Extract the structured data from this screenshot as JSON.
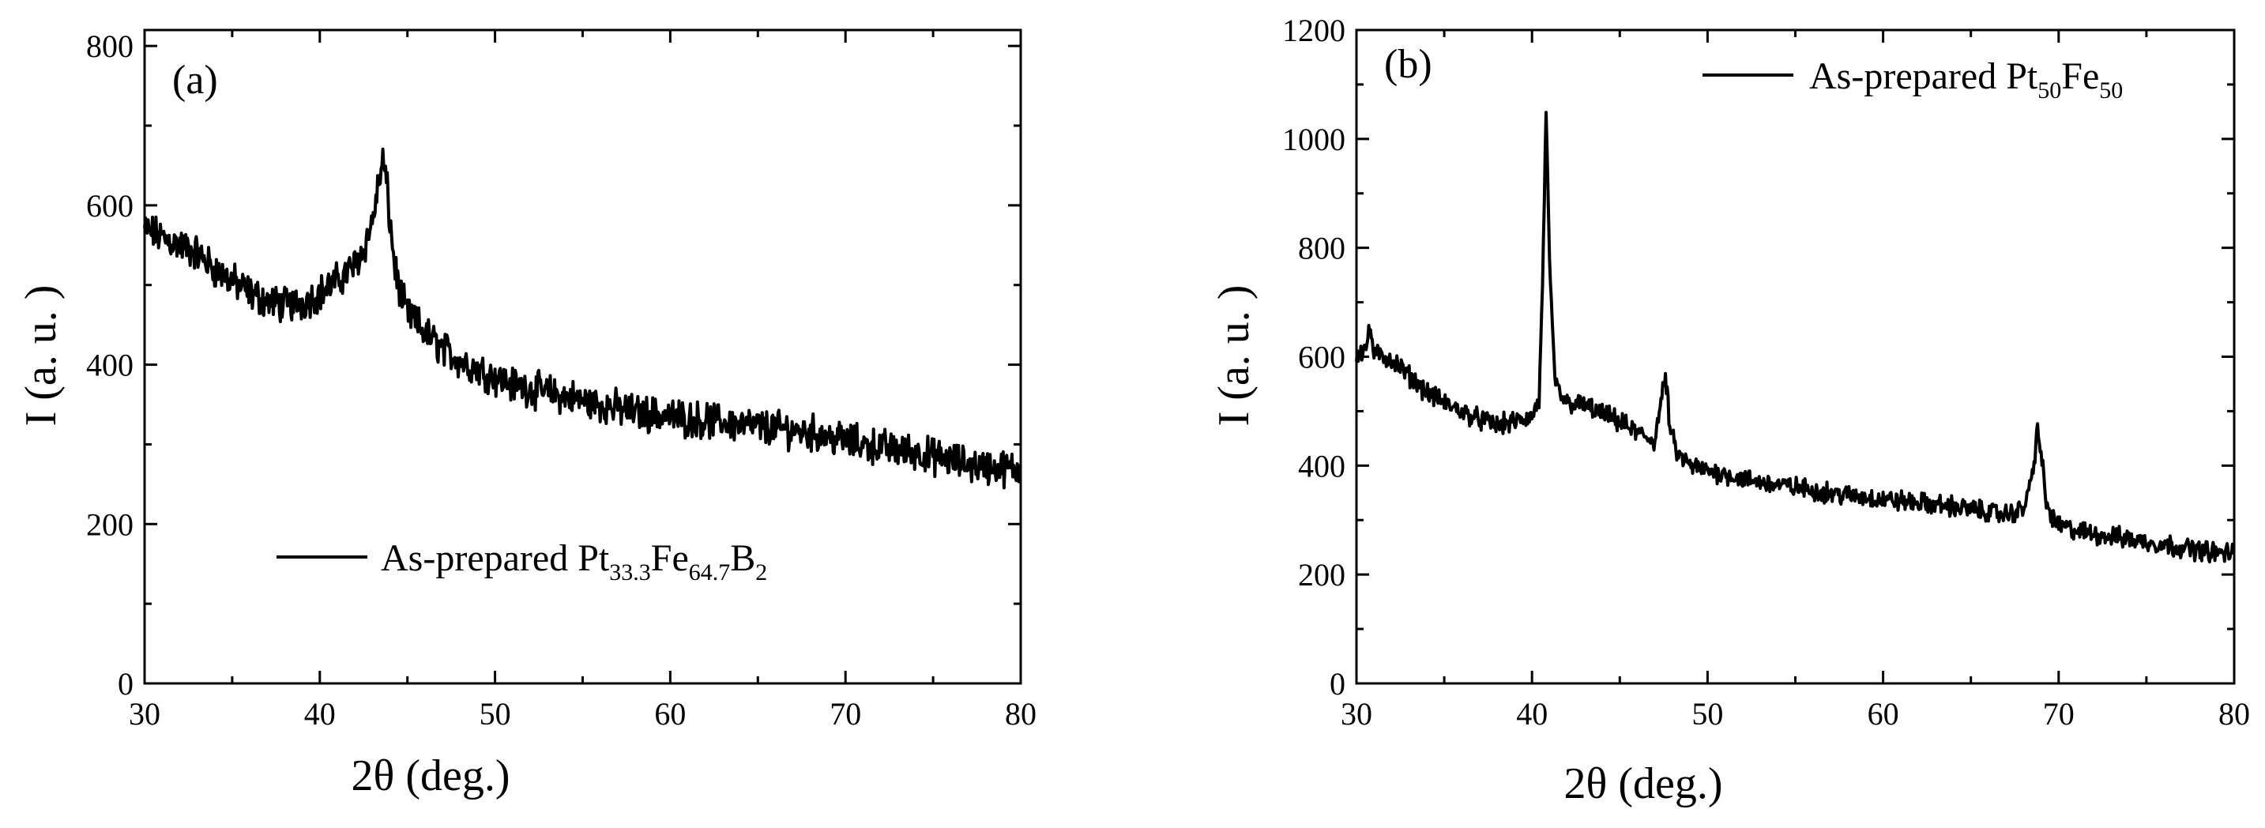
{
  "chart_data": [
    {
      "type": "line",
      "panel_label": "(a)",
      "xlabel": "2θ (deg.)",
      "ylabel": "I (a. u. )",
      "xlim": [
        30,
        80
      ],
      "ylim": [
        0,
        820
      ],
      "xticks": [
        30,
        40,
        50,
        60,
        70,
        80
      ],
      "yticks": [
        0,
        200,
        400,
        600,
        800
      ],
      "grid": false,
      "legend_position": "middle-center",
      "legend": {
        "base": "As-prepared Pt",
        "s1": "33.3",
        "mid1": "Fe",
        "s2": "64.7",
        "mid2": "B",
        "s3": "2"
      },
      "series": [
        {
          "x": [
            30,
            31,
            32,
            33,
            34,
            35,
            36,
            37,
            38,
            39,
            40,
            41,
            42,
            42.5,
            43,
            43.3,
            43.6,
            43.8,
            44,
            44.3,
            44.7,
            45,
            46,
            47,
            48,
            49,
            50,
            51,
            52,
            53,
            54,
            55,
            56,
            57,
            58,
            59,
            60,
            61,
            62,
            63,
            64,
            65,
            66,
            67,
            68,
            69,
            70,
            71,
            72,
            73,
            74,
            75,
            76,
            77,
            78,
            79,
            80
          ],
          "y": [
            570,
            560,
            550,
            540,
            520,
            505,
            490,
            480,
            475,
            478,
            490,
            505,
            525,
            545,
            580,
            620,
            655,
            630,
            580,
            520,
            480,
            465,
            440,
            420,
            405,
            395,
            385,
            375,
            370,
            365,
            360,
            355,
            350,
            345,
            340,
            338,
            335,
            332,
            330,
            328,
            325,
            322,
            320,
            318,
            315,
            310,
            305,
            300,
            297,
            293,
            290,
            285,
            280,
            275,
            272,
            270,
            268
          ]
        }
      ]
    },
    {
      "type": "line",
      "panel_label": "(b)",
      "xlabel": "2θ (deg.)",
      "ylabel": "I (a. u. )",
      "xlim": [
        30,
        80
      ],
      "ylim": [
        0,
        1200
      ],
      "xticks": [
        30,
        40,
        50,
        60,
        70,
        80
      ],
      "yticks": [
        0,
        200,
        400,
        600,
        800,
        1000,
        1200
      ],
      "grid": false,
      "legend_position": "top-right",
      "legend": {
        "base": "As-prepared Pt",
        "s1": "50",
        "mid1": "Fe",
        "s2": "50",
        "mid2": "",
        "s3": ""
      },
      "series": [
        {
          "x": [
            30,
            30.5,
            30.8,
            31,
            32,
            33,
            34,
            35,
            36,
            37,
            38,
            39,
            40,
            40.4,
            40.6,
            40.8,
            41.0,
            41.3,
            41.6,
            42,
            43,
            44,
            45,
            46,
            47,
            47.3,
            47.6,
            47.9,
            48.3,
            49,
            50,
            51,
            52,
            53,
            54,
            55,
            56,
            57,
            58,
            59,
            60,
            61,
            62,
            63,
            64,
            65,
            66,
            67,
            68,
            68.5,
            68.8,
            69,
            69.3,
            69.7,
            70,
            71,
            72,
            73,
            74,
            75,
            76,
            77,
            78,
            79,
            80
          ],
          "y": [
            605,
            615,
            650,
            605,
            595,
            565,
            535,
            515,
            500,
            485,
            475,
            480,
            490,
            520,
            720,
            1060,
            760,
            560,
            530,
            515,
            510,
            495,
            480,
            460,
            445,
            510,
            560,
            460,
            420,
            400,
            390,
            385,
            375,
            370,
            365,
            360,
            355,
            350,
            345,
            342,
            338,
            335,
            332,
            328,
            325,
            320,
            315,
            310,
            320,
            380,
            470,
            420,
            330,
            300,
            290,
            280,
            275,
            270,
            265,
            260,
            255,
            250,
            245,
            240,
            240
          ]
        }
      ]
    }
  ]
}
